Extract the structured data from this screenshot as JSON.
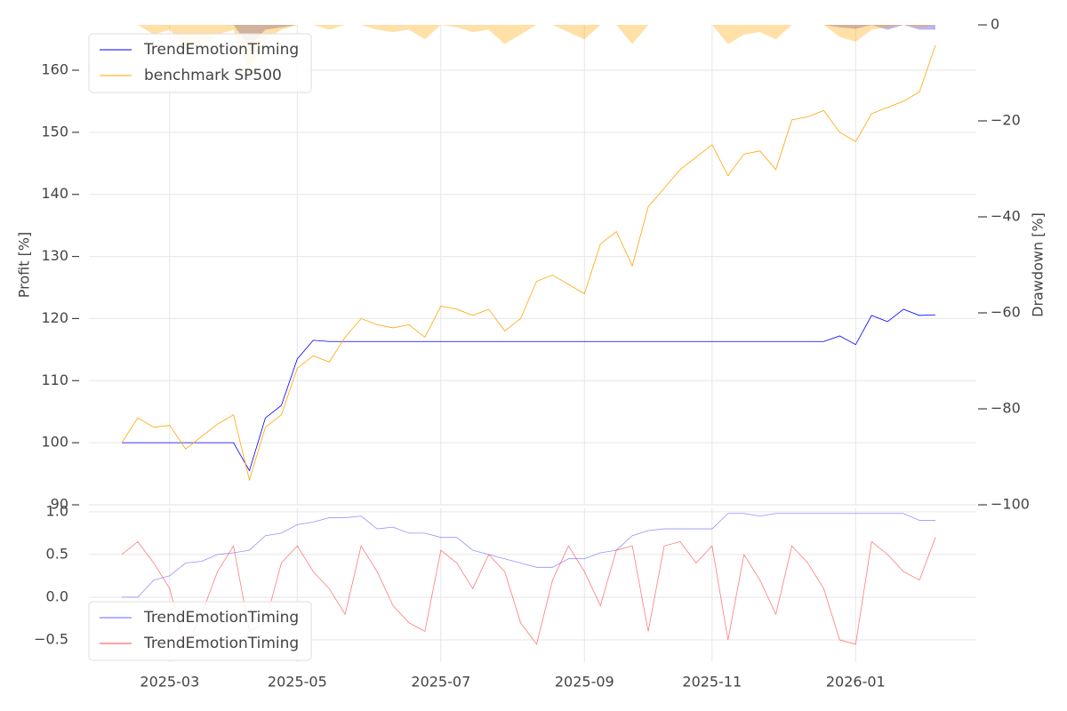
{
  "chart_data": [
    {
      "type": "line",
      "ylabel": "Profit [%]",
      "y2label": "Drawdown [%]",
      "ylim": [
        90,
        167.3
      ],
      "yticks": [
        90,
        100,
        110,
        120,
        130,
        140,
        150,
        160
      ],
      "y2lim": [
        -100,
        0
      ],
      "y2ticks": [
        {
          "value": -100,
          "label": "−100"
        },
        {
          "value": -80,
          "label": "−80"
        },
        {
          "value": -60,
          "label": "−60"
        },
        {
          "value": -40,
          "label": "−40"
        },
        {
          "value": -20,
          "label": "−20"
        },
        0
      ],
      "grid": true,
      "legend": "upper left",
      "series": [
        {
          "name": "TrendEmotionTiming",
          "color": "#0000ff",
          "values": [
            100,
            100,
            100,
            100,
            100,
            100,
            100,
            100,
            95.5,
            104,
            106,
            113.5,
            116.5,
            116.3,
            116.3,
            116.3,
            116.3,
            116.3,
            116.3,
            116.3,
            116.3,
            116.3,
            116.3,
            116.3,
            116.3,
            116.3,
            116.3,
            116.3,
            116.3,
            116.3,
            116.3,
            116.3,
            116.3,
            116.3,
            116.3,
            116.3,
            116.3,
            116.3,
            116.3,
            116.3,
            116.3,
            116.3,
            116.3,
            116.3,
            116.3,
            117.2,
            115.8,
            120.5,
            119.5,
            121.5,
            120.5,
            120.6
          ]
        },
        {
          "name": "benchmark SP500",
          "color": "#ffa500",
          "values": [
            100,
            104,
            102.5,
            102.8,
            99,
            101,
            103,
            104.5,
            94,
            102.5,
            104.5,
            112,
            114,
            113,
            117,
            120,
            119,
            118.5,
            119,
            117,
            122,
            121.5,
            120.5,
            121.5,
            118,
            120,
            126,
            127,
            125.5,
            124,
            132,
            134,
            128.5,
            138,
            141,
            144,
            146,
            148,
            143,
            146.5,
            147,
            144,
            152,
            152.5,
            153.5,
            150,
            148.5,
            153,
            154,
            155,
            156.5,
            164
          ]
        },
        {
          "color": "#3333cc",
          "axis": "y2",
          "style": "area",
          "values": [
            0,
            0,
            0,
            0,
            0,
            0,
            0,
            0,
            -4.5,
            -1,
            -0.5,
            0,
            0,
            0,
            0,
            0,
            0,
            0,
            0,
            0,
            0,
            0,
            0,
            0,
            0,
            0,
            0,
            0,
            0,
            0,
            0,
            0,
            0,
            0,
            0,
            0,
            0,
            0,
            0,
            0,
            0,
            0,
            0,
            0,
            0,
            -0.5,
            -0.8,
            0,
            -1,
            0,
            -1,
            -1
          ]
        },
        {
          "color": "#ffa500",
          "axis": "y2",
          "style": "area",
          "values": [
            0,
            0,
            -2,
            -1,
            -5,
            -4,
            -2,
            -1,
            -10,
            -3,
            -1,
            0,
            0,
            -1,
            0,
            0,
            -1,
            -1.5,
            -1,
            -3,
            0,
            -0.5,
            -1.5,
            -1,
            -4,
            -2,
            0,
            0,
            -1.5,
            -3,
            0,
            0,
            -4,
            0,
            0,
            0,
            0,
            0,
            -4,
            -2,
            -1.5,
            -3,
            0,
            0,
            0,
            -2.5,
            -3.5,
            -1,
            -0.5,
            0,
            -0.5,
            0
          ]
        }
      ]
    },
    {
      "type": "line",
      "categories": [
        null,
        null,
        null,
        "2025-03",
        null,
        null,
        null,
        null,
        null,
        null,
        null,
        "2025-05",
        null,
        null,
        null,
        null,
        null,
        null,
        null,
        null,
        "2025-07",
        null,
        null,
        null,
        null,
        null,
        null,
        null,
        null,
        "2025-09",
        null,
        null,
        null,
        null,
        null,
        null,
        null,
        "2025-11",
        null,
        null,
        null,
        null,
        null,
        null,
        null,
        null,
        "2026-01",
        null,
        null,
        null,
        null,
        null
      ],
      "ylim": [
        -0.76,
        1.04
      ],
      "yticks": [
        {
          "value": -0.5,
          "label": "−0.5"
        },
        {
          "value": 0,
          "label": "0.0"
        },
        0.5,
        {
          "value": 1,
          "label": "1.0"
        }
      ],
      "grid": true,
      "legend": "lower left",
      "series": [
        {
          "name": "TrendEmotionTiming",
          "color": "#6666ff",
          "values": [
            0,
            0,
            0.2,
            0.25,
            0.4,
            0.42,
            0.5,
            0.52,
            0.55,
            0.72,
            0.75,
            0.85,
            0.88,
            0.93,
            0.93,
            0.95,
            0.8,
            0.82,
            0.75,
            0.75,
            0.7,
            0.7,
            0.55,
            0.5,
            0.45,
            0.4,
            0.35,
            0.35,
            0.45,
            0.45,
            0.52,
            0.55,
            0.72,
            0.78,
            0.8,
            0.8,
            0.8,
            0.8,
            0.98,
            0.98,
            0.95,
            0.98,
            0.98,
            0.98,
            0.98,
            0.98,
            0.98,
            0.98,
            0.98,
            0.98,
            0.9,
            0.9
          ]
        },
        {
          "name": "TrendEmotionTiming",
          "color": "#ff4444",
          "values": [
            0.5,
            0.65,
            0.4,
            0.1,
            -0.6,
            -0.2,
            0.3,
            0.6,
            -0.4,
            -0.3,
            0.4,
            0.6,
            0.3,
            0.1,
            -0.2,
            0.6,
            0.3,
            -0.1,
            -0.3,
            -0.4,
            0.55,
            0.4,
            0.1,
            0.5,
            0.3,
            -0.3,
            -0.55,
            0.2,
            0.6,
            0.3,
            -0.1,
            0.55,
            0.6,
            -0.4,
            0.6,
            0.65,
            0.4,
            0.6,
            -0.5,
            0.5,
            0.2,
            -0.2,
            0.6,
            0.4,
            0.1,
            -0.5,
            -0.55,
            0.65,
            0.5,
            0.3,
            0.2,
            0.7
          ]
        }
      ]
    }
  ]
}
